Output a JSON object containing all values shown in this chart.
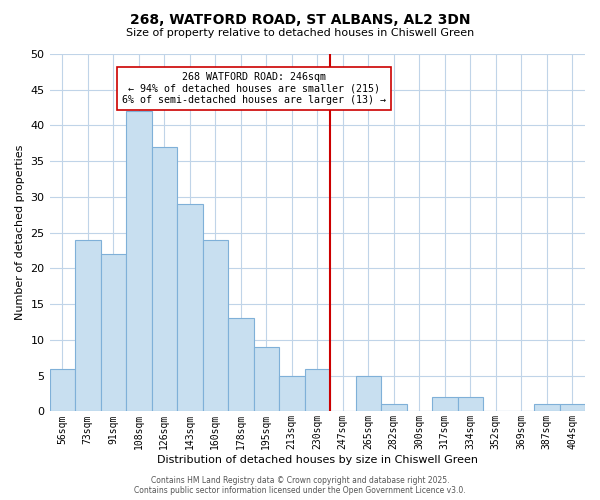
{
  "title": "268, WATFORD ROAD, ST ALBANS, AL2 3DN",
  "subtitle": "Size of property relative to detached houses in Chiswell Green",
  "xlabel": "Distribution of detached houses by size in Chiswell Green",
  "ylabel": "Number of detached properties",
  "categories": [
    "56sqm",
    "73sqm",
    "91sqm",
    "108sqm",
    "126sqm",
    "143sqm",
    "160sqm",
    "178sqm",
    "195sqm",
    "213sqm",
    "230sqm",
    "247sqm",
    "265sqm",
    "282sqm",
    "300sqm",
    "317sqm",
    "334sqm",
    "352sqm",
    "369sqm",
    "387sqm",
    "404sqm"
  ],
  "values": [
    6,
    24,
    22,
    42,
    37,
    29,
    24,
    13,
    9,
    5,
    6,
    0,
    5,
    1,
    0,
    2,
    2,
    0,
    0,
    1,
    1
  ],
  "bar_color": "#c8dff0",
  "bar_edge_color": "#7fb0d8",
  "red_line_x": 10.5,
  "highlight_color": "#cc0000",
  "ylim": [
    0,
    50
  ],
  "yticks": [
    0,
    5,
    10,
    15,
    20,
    25,
    30,
    35,
    40,
    45,
    50
  ],
  "annotation_title": "268 WATFORD ROAD: 246sqm",
  "annotation_line1": "← 94% of detached houses are smaller (215)",
  "annotation_line2": "6% of semi-detached houses are larger (13) →",
  "footer_line1": "Contains HM Land Registry data © Crown copyright and database right 2025.",
  "footer_line2": "Contains public sector information licensed under the Open Government Licence v3.0.",
  "background_color": "#ffffff",
  "grid_color": "#c0d4e8"
}
